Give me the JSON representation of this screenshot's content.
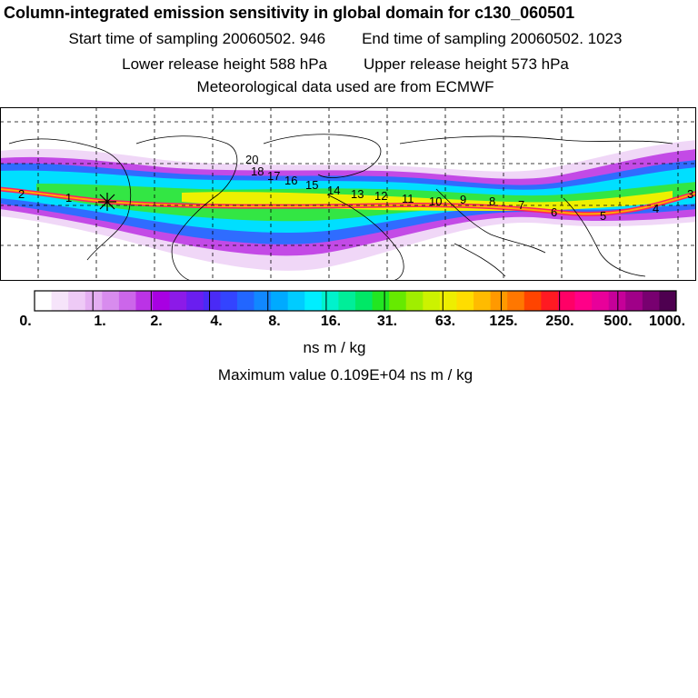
{
  "header": {
    "title": "Column-integrated emission sensitivity in global domain for c130_060501",
    "start_label": "Start time of sampling 20060502.   946",
    "end_label": "End time of sampling 20060502.  1023",
    "lower_label": "Lower release height  588 hPa",
    "upper_label": "Upper release height  573 hPa",
    "met_label": "Meteorological data used are from ECMWF"
  },
  "map": {
    "trajectory_labels": [
      "2",
      "1",
      "20",
      "18",
      "17",
      "16",
      "15",
      "14",
      "13",
      "12",
      "11",
      "10",
      "9",
      "8",
      "7",
      "6",
      "5",
      "4",
      "3"
    ]
  },
  "legend": {
    "ticks": [
      "0.",
      "1.",
      "2.",
      "4.",
      "8.",
      "16.",
      "31.",
      "63.",
      "125.",
      "250.",
      "500.",
      "1000."
    ],
    "colors": [
      "#ffffff",
      "#f6e4fa",
      "#eecaf6",
      "#e4aef2",
      "#d88cee",
      "#cc66ea",
      "#bb33e6",
      "#a800e2",
      "#8c1ae8",
      "#6a1ef0",
      "#4a2af6",
      "#3344ff",
      "#2266ff",
      "#1188ff",
      "#00aaff",
      "#00ccff",
      "#00eeff",
      "#00f2cc",
      "#00ee99",
      "#00e866",
      "#22e622",
      "#66ea00",
      "#a0ee00",
      "#ccf200",
      "#eeee00",
      "#ffdd00",
      "#ffbb00",
      "#ff9900",
      "#ff7700",
      "#ff4400",
      "#ff1a22",
      "#ff0066",
      "#ff0088",
      "#e8009a",
      "#c60099",
      "#a00088",
      "#780070",
      "#4e0050"
    ],
    "unit": "ns m / kg",
    "max_label": "Maximum value  0.109E+04 ns m / kg"
  }
}
